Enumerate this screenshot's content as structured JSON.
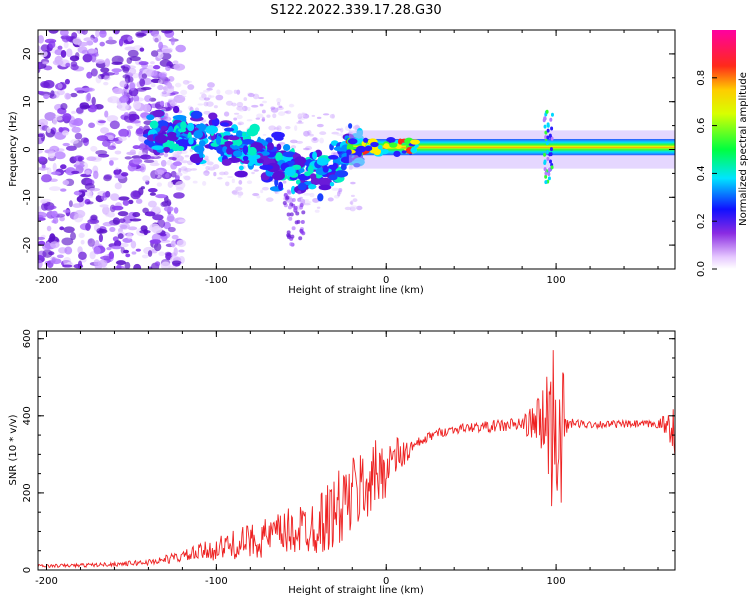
{
  "title": "S122.2022.339.17.28.G30",
  "chart_data": [
    {
      "type": "heatmap",
      "xlabel": "Height of straight line (km)",
      "ylabel": "Frequency (Hz)",
      "xlim": [
        -205,
        170
      ],
      "ylim": [
        -25,
        25
      ],
      "xticks": [
        -200,
        -100,
        0,
        100
      ],
      "yticks": [
        -20,
        -10,
        0,
        10,
        20
      ],
      "colorbar": {
        "label": "Normalized spectral amplitude",
        "range": [
          0,
          1
        ],
        "ticks": [
          0.0,
          0.2,
          0.4,
          0.6,
          0.8
        ],
        "colormap": "rainbow (white-violet-blue-cyan-green-yellow-red-magenta)"
      },
      "features": [
        {
          "description": "scattered violet noise",
          "x_range": [
            -205,
            -135
          ],
          "freq_range": [
            -25,
            25
          ]
        },
        {
          "description": "clustered blue/cyan blobs, descending",
          "x_range": [
            -140,
            -20
          ],
          "freq_center": [
            5,
            -5
          ]
        },
        {
          "description": "narrow band, red/yellow core",
          "x_range": [
            -20,
            170
          ],
          "freq_center": 0.5
        },
        {
          "description": "vertical spread",
          "x": 95,
          "freq_range": [
            -7,
            8
          ]
        }
      ]
    },
    {
      "type": "line",
      "xlabel": "Height of straight line (km)",
      "ylabel": "SNR (10 * v/v)",
      "xlim": [
        -205,
        170
      ],
      "ylim": [
        0,
        620
      ],
      "xticks": [
        -200,
        -100,
        0,
        100
      ],
      "yticks": [
        0,
        200,
        400,
        600
      ],
      "series": [
        {
          "color": "#ee2222",
          "x": [
            -205,
            -180,
            -160,
            -140,
            -120,
            -100,
            -80,
            -60,
            -40,
            -30,
            -20,
            -10,
            0,
            5,
            10,
            15,
            20,
            25,
            30,
            40,
            50,
            60,
            70,
            80,
            85,
            90,
            95,
            98,
            100,
            102,
            104,
            106,
            108,
            110,
            120,
            130,
            140,
            150,
            160,
            168,
            170
          ],
          "values": [
            10,
            12,
            15,
            20,
            35,
            55,
            75,
            95,
            120,
            150,
            190,
            230,
            270,
            290,
            300,
            315,
            330,
            345,
            355,
            365,
            370,
            372,
            375,
            378,
            380,
            382,
            385,
            370,
            390,
            360,
            380,
            375,
            378,
            380,
            378,
            378,
            378,
            378,
            378,
            375,
            380
          ],
          "noise": [
            4,
            5,
            5,
            8,
            15,
            30,
            45,
            60,
            80,
            100,
            110,
            100,
            80,
            60,
            40,
            25,
            15,
            12,
            12,
            12,
            12,
            15,
            18,
            22,
            40,
            80,
            150,
            250,
            300,
            260,
            150,
            50,
            15,
            12,
            10,
            10,
            10,
            10,
            10,
            50,
            90
          ]
        }
      ]
    }
  ]
}
